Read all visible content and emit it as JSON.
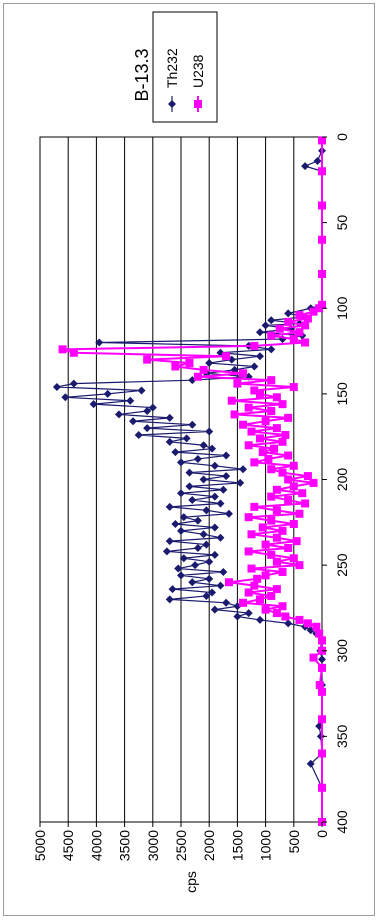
{
  "chart_data": {
    "type": "line",
    "title": "B-13.3",
    "xlabel": "",
    "ylabel": "cps",
    "xlim": [
      0,
      400
    ],
    "ylim": [
      0,
      5000
    ],
    "xticks": [
      "0",
      "50",
      "100",
      "150",
      "200",
      "250",
      "300",
      "350",
      "400"
    ],
    "yticks": [
      "0",
      "500",
      "1000",
      "1500",
      "2000",
      "2500",
      "3000",
      "3500",
      "4000",
      "4500",
      "5000"
    ],
    "grid": "horizontal",
    "legend_position": "top-right",
    "series": [
      {
        "name": "Th232",
        "color": "#1a1a6e",
        "marker": "diamond",
        "points": [
          [
            2,
            0
          ],
          [
            8,
            0
          ],
          [
            14,
            80
          ],
          [
            17,
            300
          ],
          [
            20,
            0
          ],
          [
            40,
            0
          ],
          [
            60,
            0
          ],
          [
            80,
            0
          ],
          [
            98,
            0
          ],
          [
            100,
            200
          ],
          [
            103,
            600
          ],
          [
            105,
            300
          ],
          [
            107,
            900
          ],
          [
            109,
            400
          ],
          [
            110,
            1000
          ],
          [
            112,
            550
          ],
          [
            114,
            1100
          ],
          [
            116,
            350
          ],
          [
            118,
            700
          ],
          [
            120,
            3950
          ],
          [
            122,
            1300
          ],
          [
            124,
            900
          ],
          [
            126,
            1800
          ],
          [
            128,
            1100
          ],
          [
            130,
            1600
          ],
          [
            132,
            2000
          ],
          [
            134,
            1200
          ],
          [
            136,
            1550
          ],
          [
            138,
            2050
          ],
          [
            140,
            1300
          ],
          [
            142,
            2300
          ],
          [
            144,
            4400
          ],
          [
            146,
            4700
          ],
          [
            148,
            3200
          ],
          [
            150,
            3800
          ],
          [
            152,
            4550
          ],
          [
            154,
            3400
          ],
          [
            156,
            4050
          ],
          [
            158,
            3000
          ],
          [
            160,
            3100
          ],
          [
            162,
            3600
          ],
          [
            164,
            2700
          ],
          [
            166,
            3350
          ],
          [
            168,
            2300
          ],
          [
            170,
            3100
          ],
          [
            172,
            2000
          ],
          [
            174,
            3250
          ],
          [
            176,
            2400
          ],
          [
            178,
            2700
          ],
          [
            180,
            2100
          ],
          [
            182,
            1950
          ],
          [
            184,
            2600
          ],
          [
            186,
            1700
          ],
          [
            188,
            2200
          ],
          [
            190,
            2500
          ],
          [
            192,
            1900
          ],
          [
            194,
            1400
          ],
          [
            196,
            2350
          ],
          [
            198,
            1700
          ],
          [
            200,
            2100
          ],
          [
            202,
            1450
          ],
          [
            204,
            2350
          ],
          [
            206,
            1750
          ],
          [
            208,
            2500
          ],
          [
            210,
            1900
          ],
          [
            212,
            2300
          ],
          [
            214,
            1800
          ],
          [
            216,
            2700
          ],
          [
            218,
            2050
          ],
          [
            220,
            1650
          ],
          [
            222,
            2450
          ],
          [
            224,
            2200
          ],
          [
            226,
            2600
          ],
          [
            228,
            1900
          ],
          [
            230,
            2500
          ],
          [
            232,
            2100
          ],
          [
            234,
            1800
          ],
          [
            236,
            2700
          ],
          [
            238,
            2050
          ],
          [
            240,
            2200
          ],
          [
            242,
            2750
          ],
          [
            244,
            1900
          ],
          [
            246,
            2450
          ],
          [
            248,
            2000
          ],
          [
            250,
            2250
          ],
          [
            252,
            2550
          ],
          [
            254,
            1750
          ],
          [
            256,
            2500
          ],
          [
            258,
            2000
          ],
          [
            260,
            2300
          ],
          [
            262,
            1800
          ],
          [
            264,
            2650
          ],
          [
            266,
            1950
          ],
          [
            268,
            2050
          ],
          [
            270,
            2700
          ],
          [
            272,
            1700
          ],
          [
            274,
            1500
          ],
          [
            276,
            1900
          ],
          [
            278,
            1300
          ],
          [
            280,
            1500
          ],
          [
            282,
            1100
          ],
          [
            284,
            600
          ],
          [
            286,
            300
          ],
          [
            288,
            200
          ],
          [
            290,
            100
          ],
          [
            293,
            0
          ],
          [
            300,
            30
          ],
          [
            305,
            0
          ],
          [
            320,
            0
          ],
          [
            340,
            0
          ],
          [
            344,
            50
          ],
          [
            350,
            20
          ],
          [
            360,
            0
          ],
          [
            366,
            200
          ],
          [
            380,
            0
          ],
          [
            400,
            0
          ]
        ]
      },
      {
        "name": "U238",
        "color": "#ff00ff",
        "marker": "square",
        "points": [
          [
            2,
            0
          ],
          [
            20,
            0
          ],
          [
            40,
            0
          ],
          [
            60,
            0
          ],
          [
            80,
            0
          ],
          [
            98,
            0
          ],
          [
            100,
            50
          ],
          [
            102,
            150
          ],
          [
            104,
            400
          ],
          [
            106,
            250
          ],
          [
            108,
            600
          ],
          [
            110,
            300
          ],
          [
            112,
            750
          ],
          [
            114,
            400
          ],
          [
            116,
            900
          ],
          [
            118,
            500
          ],
          [
            120,
            300
          ],
          [
            122,
            1200
          ],
          [
            124,
            4600
          ],
          [
            126,
            4400
          ],
          [
            128,
            1700
          ],
          [
            130,
            3100
          ],
          [
            132,
            2350
          ],
          [
            134,
            2600
          ],
          [
            136,
            2100
          ],
          [
            138,
            1400
          ],
          [
            140,
            2200
          ],
          [
            142,
            900
          ],
          [
            144,
            1500
          ],
          [
            146,
            500
          ],
          [
            148,
            1200
          ],
          [
            150,
            1100
          ],
          [
            152,
            800
          ],
          [
            154,
            1600
          ],
          [
            156,
            700
          ],
          [
            158,
            1300
          ],
          [
            160,
            900
          ],
          [
            162,
            1550
          ],
          [
            164,
            600
          ],
          [
            166,
            1000
          ],
          [
            168,
            1400
          ],
          [
            170,
            800
          ],
          [
            172,
            1250
          ],
          [
            174,
            650
          ],
          [
            176,
            1100
          ],
          [
            178,
            700
          ],
          [
            180,
            1300
          ],
          [
            182,
            850
          ],
          [
            184,
            1050
          ],
          [
            186,
            600
          ],
          [
            188,
            950
          ],
          [
            190,
            1200
          ],
          [
            192,
            500
          ],
          [
            194,
            900
          ],
          [
            196,
            700
          ],
          [
            198,
            250
          ],
          [
            200,
            600
          ],
          [
            202,
            150
          ],
          [
            204,
            500
          ],
          [
            206,
            800
          ],
          [
            208,
            350
          ],
          [
            210,
            900
          ],
          [
            212,
            600
          ],
          [
            214,
            300
          ],
          [
            216,
            1200
          ],
          [
            218,
            800
          ],
          [
            220,
            400
          ],
          [
            222,
            1300
          ],
          [
            224,
            900
          ],
          [
            226,
            500
          ],
          [
            228,
            1050
          ],
          [
            230,
            700
          ],
          [
            232,
            1250
          ],
          [
            234,
            800
          ],
          [
            236,
            450
          ],
          [
            238,
            1000
          ],
          [
            240,
            600
          ],
          [
            242,
            1300
          ],
          [
            244,
            900
          ],
          [
            246,
            500
          ],
          [
            248,
            800
          ],
          [
            250,
            400
          ],
          [
            252,
            1250
          ],
          [
            254,
            700
          ],
          [
            256,
            1000
          ],
          [
            258,
            1150
          ],
          [
            260,
            1650
          ],
          [
            262,
            1200
          ],
          [
            264,
            800
          ],
          [
            266,
            1300
          ],
          [
            268,
            900
          ],
          [
            270,
            1100
          ],
          [
            272,
            1400
          ],
          [
            274,
            700
          ],
          [
            276,
            1000
          ],
          [
            278,
            800
          ],
          [
            280,
            650
          ],
          [
            282,
            400
          ],
          [
            284,
            250
          ],
          [
            286,
            100
          ],
          [
            290,
            50
          ],
          [
            294,
            0
          ],
          [
            300,
            0
          ],
          [
            304,
            150
          ],
          [
            310,
            0
          ],
          [
            320,
            40
          ],
          [
            324,
            0
          ],
          [
            340,
            0
          ],
          [
            360,
            0
          ],
          [
            380,
            0
          ],
          [
            400,
            0
          ]
        ]
      }
    ]
  }
}
